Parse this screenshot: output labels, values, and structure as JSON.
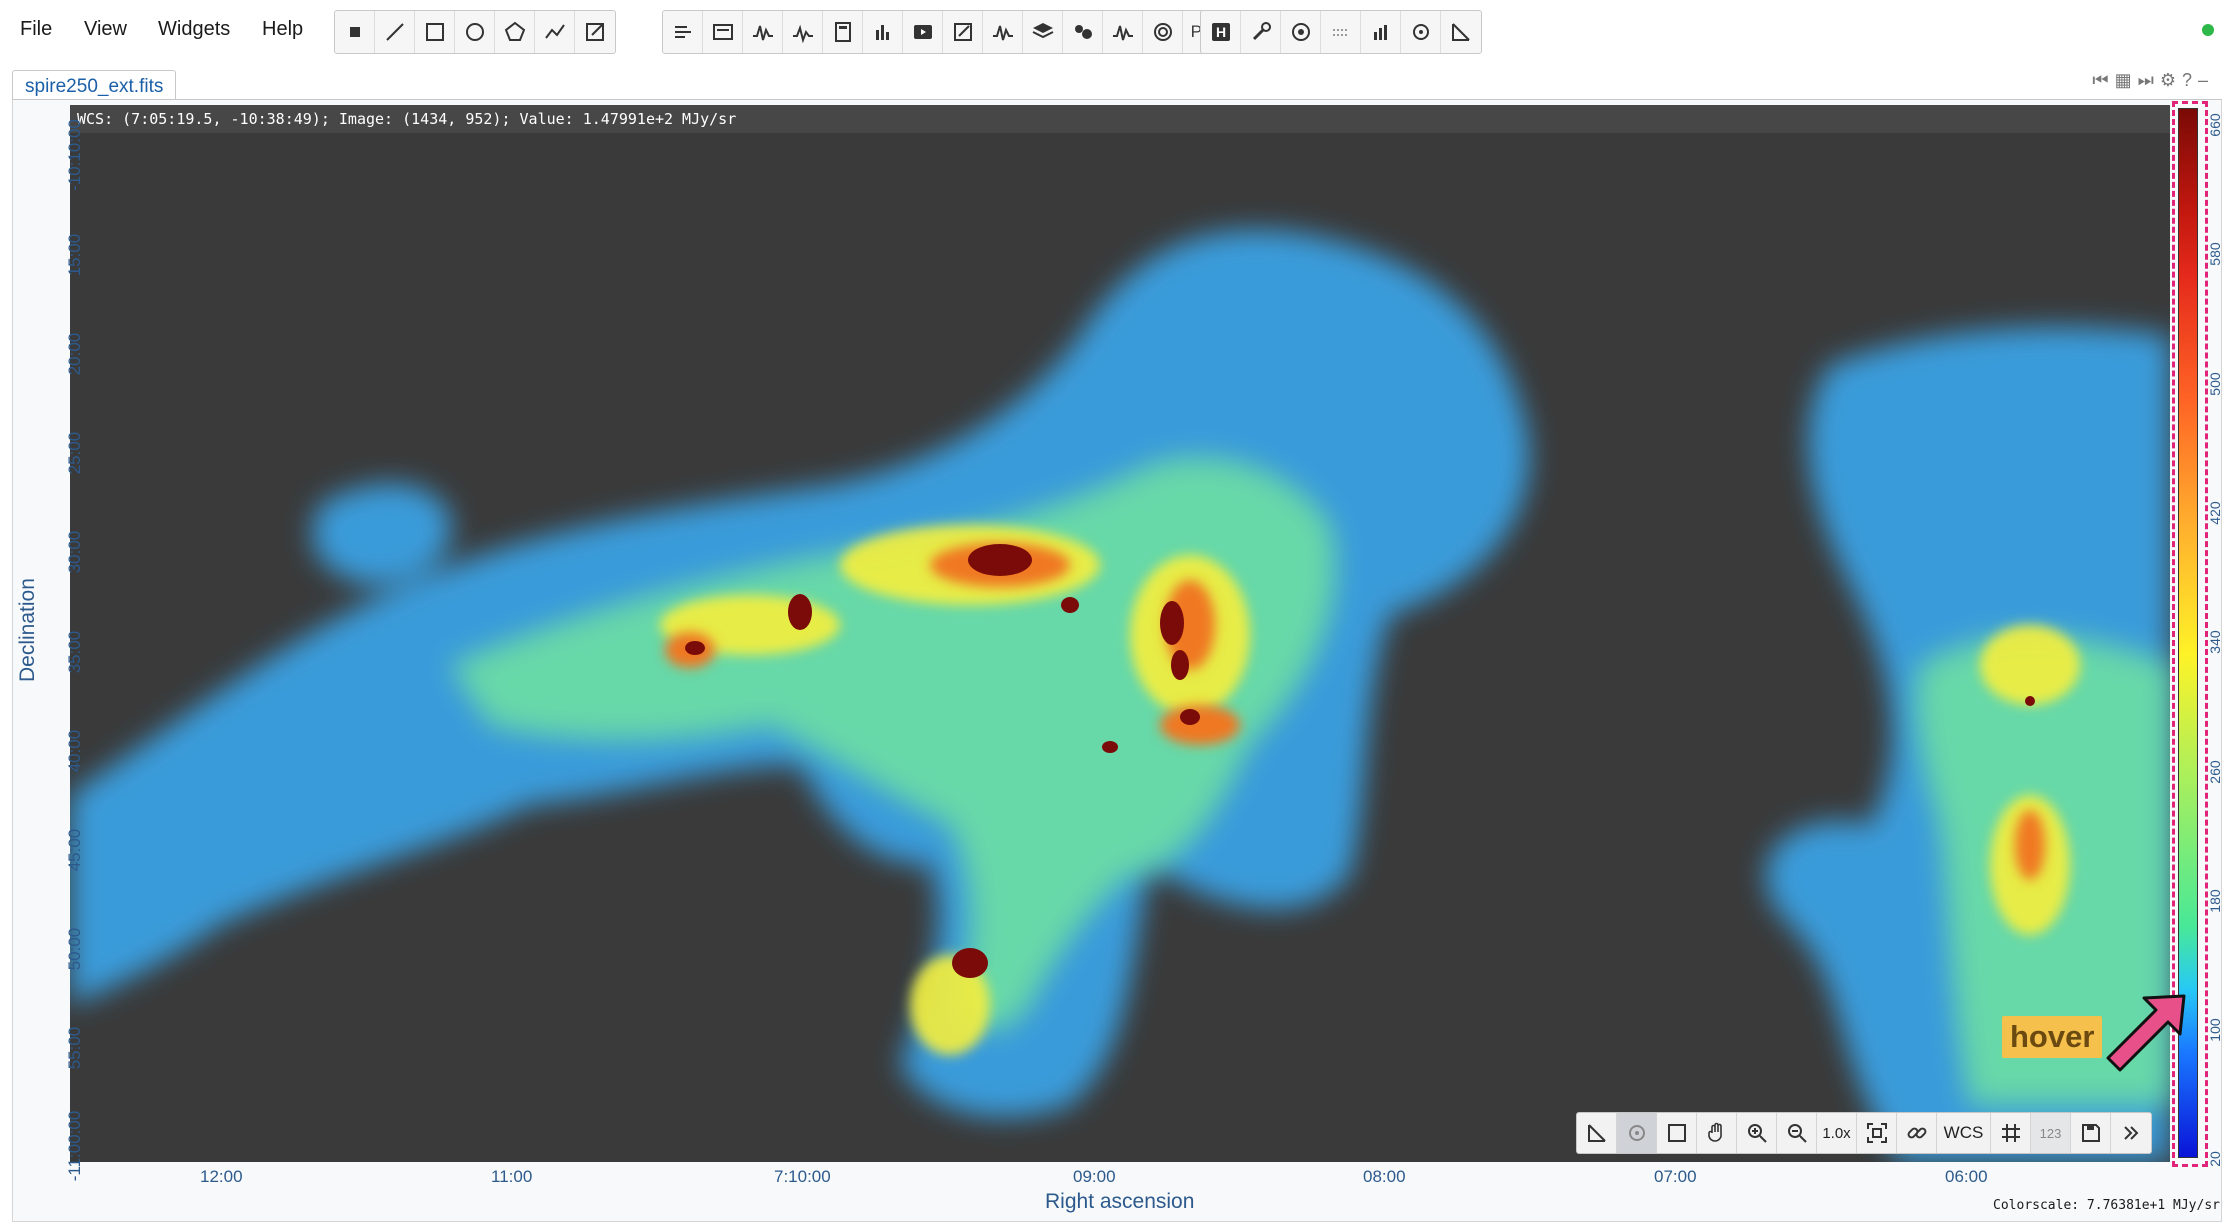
{
  "menu": [
    "File",
    "View",
    "Widgets",
    "Help"
  ],
  "toolbar": {
    "pv_label": "PV"
  },
  "tab": {
    "title": "spire250_ext.fits"
  },
  "cursor_info": "WCS: (7:05:19.5, -10:38:49); Image: (1434, 952); Value:  1.47991e+2 MJy/sr",
  "axes": {
    "xlabel": "Right ascension",
    "ylabel": "Declination",
    "xticks": [
      "12:00",
      "11:00",
      "7:10:00",
      "09:00",
      "08:00",
      "07:00",
      "06:00"
    ],
    "yticks": [
      "-10:10:00",
      "15:00",
      "20:00",
      "25:00",
      "30:00",
      "35:00",
      "40:00",
      "45:00",
      "50:00",
      "55:00",
      "-11:00:00"
    ]
  },
  "colorbar": {
    "ticks": [
      "660",
      "580",
      "500",
      "420",
      "340",
      "260",
      "180",
      "100",
      "20"
    ],
    "colors": {
      "low": "#0a14d8",
      "mid": "#fff227",
      "high": "#7b0a06"
    }
  },
  "colorscale_text": "Colorscale: 7.76381e+1 MJy/sr",
  "hover_label": "hover",
  "bottom_toolbar": {
    "zoom_label": "1.0x",
    "coord_label": "WCS",
    "numeric_label": "123"
  },
  "icons": [
    "point-icon",
    "line-icon",
    "rectangle-icon",
    "ellipse-icon",
    "polygon-icon",
    "polyline-icon",
    "annotation-icon",
    "file-header-icon",
    "image-info-icon",
    "spatial-profile-x-icon",
    "spatial-profile-y-icon",
    "calculator-icon",
    "histogram-icon",
    "animator-icon",
    "catalog-icon",
    "spectral-profile-icon",
    "layer-icon",
    "cluster-icon",
    "moment-icon",
    "contour-icon",
    "hist-h-icon",
    "wrench-icon",
    "fit-icon",
    "mask-icon",
    "statistics-icon",
    "region-stats-icon",
    "distance-icon"
  ],
  "accent_colors": {
    "highlight": "#e0247a",
    "hover": "#f5c04b",
    "status": "#2eb84a"
  }
}
